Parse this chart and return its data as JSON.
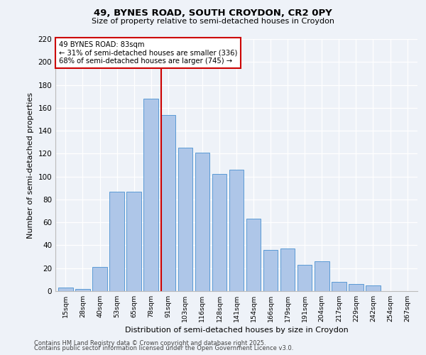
{
  "title1": "49, BYNES ROAD, SOUTH CROYDON, CR2 0PY",
  "title2": "Size of property relative to semi-detached houses in Croydon",
  "xlabel": "Distribution of semi-detached houses by size in Croydon",
  "ylabel": "Number of semi-detached properties",
  "bar_labels": [
    "15sqm",
    "28sqm",
    "40sqm",
    "53sqm",
    "65sqm",
    "78sqm",
    "91sqm",
    "103sqm",
    "116sqm",
    "128sqm",
    "141sqm",
    "154sqm",
    "166sqm",
    "179sqm",
    "191sqm",
    "204sqm",
    "217sqm",
    "229sqm",
    "242sqm",
    "254sqm",
    "267sqm"
  ],
  "bar_values": [
    3,
    2,
    21,
    87,
    87,
    168,
    154,
    125,
    121,
    102,
    106,
    63,
    36,
    37,
    23,
    26,
    8,
    6,
    5,
    0,
    0
  ],
  "bar_color": "#aec6e8",
  "bar_edge_color": "#5b9bd5",
  "property_label": "49 BYNES ROAD: 83sqm",
  "pct_smaller": 31,
  "pct_larger": 68,
  "n_smaller": 336,
  "n_larger": 745,
  "vline_color": "#cc0000",
  "annotation_box_color": "#cc0000",
  "ylim": [
    0,
    220
  ],
  "yticks": [
    0,
    20,
    40,
    60,
    80,
    100,
    120,
    140,
    160,
    180,
    200,
    220
  ],
  "footnote1": "Contains HM Land Registry data © Crown copyright and database right 2025.",
  "footnote2": "Contains public sector information licensed under the Open Government Licence v3.0.",
  "background_color": "#eef2f8"
}
